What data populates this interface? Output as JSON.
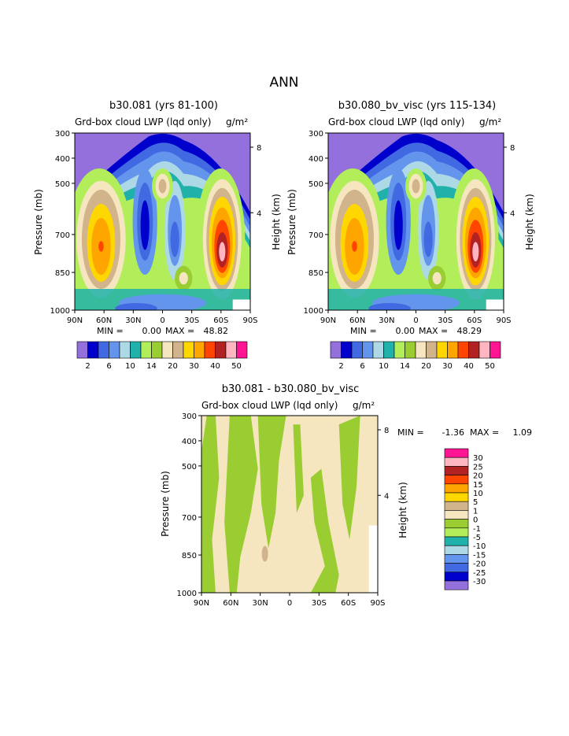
{
  "page_title": "ANN",
  "chart_data": [
    {
      "type": "contour",
      "title": "b30.081 (yrs 81-100)",
      "subtitle": "Grd-box cloud LWP (lqd only)",
      "units": "g/m²",
      "xlabel": "",
      "ylabel": "Pressure (mb)",
      "y2label": "Height (km)",
      "x_ticks": [
        "90N",
        "60N",
        "30N",
        "0",
        "30S",
        "60S",
        "90S"
      ],
      "y_ticks": [
        "300",
        "400",
        "500",
        "700",
        "850",
        "1000"
      ],
      "y2_ticks": [
        "8",
        "4"
      ],
      "min_label": "MIN =",
      "min_value": "0.00",
      "max_label": "MAX =",
      "max_value": "48.82",
      "colorbar_labels": [
        "2",
        "6",
        "10",
        "14",
        "20",
        "30",
        "40",
        "50"
      ]
    },
    {
      "type": "contour",
      "title": "b30.080_bv_visc (yrs 115-134)",
      "subtitle": "Grd-box cloud LWP (lqd only)",
      "units": "g/m²",
      "xlabel": "",
      "ylabel": "Pressure (mb)",
      "y2label": "Height (km)",
      "x_ticks": [
        "90N",
        "60N",
        "30N",
        "0",
        "30S",
        "60S",
        "90S"
      ],
      "y_ticks": [
        "300",
        "400",
        "500",
        "700",
        "850",
        "1000"
      ],
      "y2_ticks": [
        "8",
        "4"
      ],
      "min_label": "MIN =",
      "min_value": "0.00",
      "max_label": "MAX =",
      "max_value": "48.29",
      "colorbar_labels": [
        "2",
        "6",
        "10",
        "14",
        "20",
        "30",
        "40",
        "50"
      ]
    },
    {
      "type": "contour",
      "title": "b30.081 - b30.080_bv_visc",
      "subtitle": "Grd-box cloud LWP (lqd only)",
      "units": "g/m²",
      "xlabel": "",
      "ylabel": "Pressure (mb)",
      "y2label": "Height (km)",
      "x_ticks": [
        "90N",
        "60N",
        "30N",
        "0",
        "30S",
        "60S",
        "90S"
      ],
      "y_ticks": [
        "300",
        "400",
        "500",
        "700",
        "850",
        "1000"
      ],
      "y2_ticks": [
        "8",
        "4"
      ],
      "min_label": "MIN =",
      "min_value": "-1.36",
      "max_label": "MAX =",
      "max_value": "1.09",
      "colorbar_labels": [
        "30",
        "25",
        "20",
        "15",
        "10",
        "5",
        "1",
        "0",
        "-1",
        "-5",
        "-10",
        "-15",
        "-20",
        "-25",
        "-30"
      ]
    }
  ],
  "colors": {
    "levels": [
      "#9370db",
      "#0000cd",
      "#4169e1",
      "#6495ed",
      "#add8e6",
      "#20b2aa",
      "#b2ee5a",
      "#9acd32",
      "#f5e6c0",
      "#d2b48c",
      "#ffd700",
      "#ffa500",
      "#ff4500",
      "#b22222",
      "#ffb6c1",
      "#ff1493"
    ],
    "diff_levels": [
      "#ff1493",
      "#ffb6c1",
      "#b22222",
      "#ff4500",
      "#ffa500",
      "#ffd700",
      "#d2b48c",
      "#f5e6c0",
      "#9acd32",
      "#b2ee5a",
      "#20b2aa",
      "#add8e6",
      "#6495ed",
      "#4169e1",
      "#0000cd",
      "#9370db"
    ]
  }
}
